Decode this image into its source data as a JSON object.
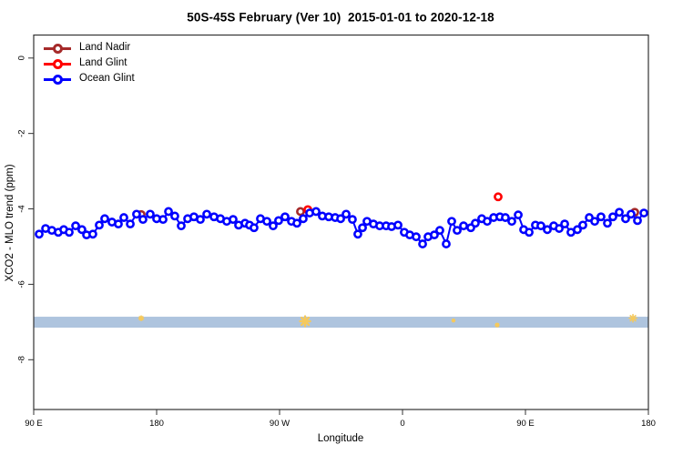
{
  "title": "50S-45S February (Ver 10)  2015-01-01 to 2020-12-18",
  "axes": {
    "x_label": "Longitude",
    "y_label": "XCO2 - MLO trend (ppm)",
    "x_ticks": [
      {
        "pos": 0,
        "label": "90 E"
      },
      {
        "pos": 90,
        "label": "180"
      },
      {
        "pos": 180,
        "label": "90 W"
      },
      {
        "pos": 270,
        "label": "0"
      },
      {
        "pos": 360,
        "label": "90 E"
      },
      {
        "pos": 450,
        "label": "180"
      }
    ],
    "y_ticks": [
      {
        "val": 0,
        "label": "0"
      },
      {
        "val": -2,
        "label": "-2"
      },
      {
        "val": -4,
        "label": "-4"
      },
      {
        "val": -6,
        "label": "-6"
      },
      {
        "val": -8,
        "label": "-8"
      }
    ]
  },
  "legend": [
    {
      "label": "Land Nadir",
      "color": "#A52A2A"
    },
    {
      "label": "Land Glint",
      "color": "#FF0000"
    },
    {
      "label": "Ocean Glint",
      "color": "#0000FF"
    }
  ],
  "chart_data": {
    "type": "line",
    "xlabel": "Longitude",
    "ylabel": "XCO2 - MLO trend (ppm)",
    "xlim_deg_from_90E": [
      0,
      450
    ],
    "ylim": [
      -9.32,
      0.61
    ],
    "grid": false,
    "legend_position": "topleft",
    "series": [
      {
        "name": "Land Nadir",
        "color": "#A52A2A",
        "marker": "open-circle",
        "x": [
          78.7,
          195.3,
          440.0
        ],
        "values": [
          -4.15,
          -4.07,
          -4.09
        ]
      },
      {
        "name": "Land Glint",
        "color": "#FF0000",
        "marker": "open-circle",
        "x": [
          200.7,
          340.0
        ],
        "values": [
          -4.02,
          -3.68
        ]
      },
      {
        "name": "Ocean Glint",
        "color": "#0000FF",
        "marker": "open-circle",
        "connected": true,
        "x": [
          4.0,
          8.7,
          13.3,
          18.0,
          22.0,
          26.0,
          30.7,
          35.3,
          38.7,
          43.3,
          48.0,
          52.0,
          57.3,
          62.0,
          66.0,
          70.7,
          75.3,
          80.0,
          85.3,
          90.0,
          94.7,
          98.7,
          103.3,
          108.0,
          112.7,
          117.3,
          122.0,
          126.7,
          132.0,
          136.7,
          141.3,
          146.0,
          150.0,
          154.7,
          158.0,
          161.3,
          166.0,
          170.7,
          175.3,
          179.3,
          184.0,
          188.7,
          192.7,
          197.3,
          202.0,
          206.7,
          211.3,
          216.0,
          220.7,
          224.7,
          228.7,
          233.3,
          237.3,
          240.7,
          244.0,
          248.7,
          253.3,
          258.0,
          262.0,
          266.7,
          271.3,
          275.3,
          280.0,
          284.7,
          288.7,
          293.3,
          297.3,
          302.0,
          306.0,
          310.0,
          314.7,
          320.0,
          323.3,
          328.0,
          332.0,
          336.7,
          341.3,
          345.3,
          350.0,
          354.7,
          358.7,
          362.7,
          367.3,
          371.3,
          376.0,
          380.7,
          384.7,
          388.7,
          393.3,
          398.0,
          402.0,
          406.7,
          410.7,
          415.3,
          420.0,
          424.0,
          428.7,
          433.3,
          437.3,
          442.0,
          446.7
        ],
        "values": [
          -4.67,
          -4.52,
          -4.57,
          -4.62,
          -4.55,
          -4.62,
          -4.45,
          -4.55,
          -4.69,
          -4.67,
          -4.43,
          -4.26,
          -4.35,
          -4.4,
          -4.23,
          -4.4,
          -4.14,
          -4.28,
          -4.14,
          -4.26,
          -4.28,
          -4.07,
          -4.19,
          -4.45,
          -4.26,
          -4.21,
          -4.28,
          -4.14,
          -4.21,
          -4.26,
          -4.33,
          -4.28,
          -4.43,
          -4.38,
          -4.43,
          -4.5,
          -4.26,
          -4.33,
          -4.45,
          -4.31,
          -4.21,
          -4.33,
          -4.38,
          -4.26,
          -4.11,
          -4.07,
          -4.19,
          -4.21,
          -4.23,
          -4.26,
          -4.14,
          -4.28,
          -4.67,
          -4.5,
          -4.33,
          -4.4,
          -4.45,
          -4.45,
          -4.47,
          -4.43,
          -4.62,
          -4.69,
          -4.74,
          -4.93,
          -4.74,
          -4.69,
          -4.57,
          -4.93,
          -4.33,
          -4.57,
          -4.45,
          -4.5,
          -4.38,
          -4.26,
          -4.33,
          -4.23,
          -4.21,
          -4.23,
          -4.33,
          -4.16,
          -4.55,
          -4.62,
          -4.43,
          -4.45,
          -4.55,
          -4.45,
          -4.52,
          -4.4,
          -4.62,
          -4.55,
          -4.43,
          -4.23,
          -4.33,
          -4.21,
          -4.38,
          -4.21,
          -4.09,
          -4.26,
          -4.14,
          -4.31,
          -4.11
        ]
      }
    ],
    "band": {
      "color": "#AEC4DE",
      "y_from": -6.86,
      "y_to": -7.15
    },
    "band_marks": {
      "color": "#F5C95C",
      "points": [
        {
          "x": 78.7,
          "val": -6.9,
          "r": 2.5
        },
        {
          "x": 198.7,
          "val": -6.98,
          "r": 5.5
        },
        {
          "x": 307.3,
          "val": -6.96,
          "r": 1.5
        },
        {
          "x": 339.3,
          "val": -7.08,
          "r": 2.0
        },
        {
          "x": 438.7,
          "val": -6.9,
          "r": 4.0
        }
      ]
    }
  }
}
